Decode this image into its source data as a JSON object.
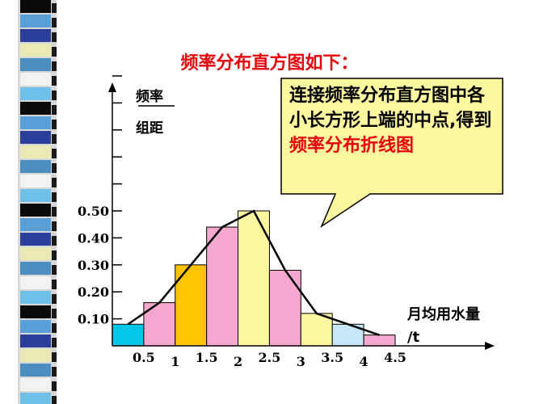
{
  "title": "频率分布直方图如下：",
  "callout": {
    "prefix": "连接频率分布直方图中各小长方形上端的中点,得到",
    "highlight": "频率分布折线图"
  },
  "y_label": {
    "top": "频率",
    "bottom": "组距"
  },
  "x_unit": {
    "name": "月均用水量",
    "unit": "/t"
  },
  "stripe_colors": [
    "#0a0a0a",
    "#5aa0d8",
    "#2b3e99",
    "#e9e9b3",
    "#4a8fbf",
    "#f2f2f2",
    "#6fc0e8"
  ],
  "chart_data": {
    "type": "bar",
    "x_ticks": [
      "0.5",
      "1",
      "1.5",
      "2",
      "2.5",
      "3",
      "3.5",
      "4",
      "4.5"
    ],
    "x_tick_values": [
      0.5,
      1,
      1.5,
      2,
      2.5,
      3,
      3.5,
      4,
      4.5
    ],
    "y_ticks": [
      "0.10",
      "0.20",
      "0.30",
      "0.40",
      "0.50"
    ],
    "y_tick_values": [
      0.1,
      0.2,
      0.3,
      0.4,
      0.5
    ],
    "ylim": [
      0,
      0.5
    ],
    "bars": [
      {
        "from": 0,
        "to": 0.5,
        "value": 0.08,
        "color": "#00c8e6"
      },
      {
        "from": 0.5,
        "to": 1,
        "value": 0.16,
        "color": "#f7a8cf"
      },
      {
        "from": 1,
        "to": 1.5,
        "value": 0.3,
        "color": "#ffc300"
      },
      {
        "from": 1.5,
        "to": 2,
        "value": 0.44,
        "color": "#f7a8cf"
      },
      {
        "from": 2,
        "to": 2.5,
        "value": 0.5,
        "color": "#fdf7a0"
      },
      {
        "from": 2.5,
        "to": 3,
        "value": 0.28,
        "color": "#f7a8cf"
      },
      {
        "from": 3,
        "to": 3.5,
        "value": 0.12,
        "color": "#fdf7a0"
      },
      {
        "from": 3.5,
        "to": 4,
        "value": 0.08,
        "color": "#c6e8f8"
      },
      {
        "from": 4,
        "to": 4.5,
        "value": 0.04,
        "color": "#f7a8cf"
      }
    ],
    "polyline": {
      "x": [
        0.25,
        0.75,
        1.25,
        1.75,
        2.25,
        2.75,
        3.25,
        3.75,
        4.25
      ],
      "y": [
        0.08,
        0.16,
        0.3,
        0.44,
        0.5,
        0.28,
        0.12,
        0.08,
        0.04
      ]
    }
  }
}
